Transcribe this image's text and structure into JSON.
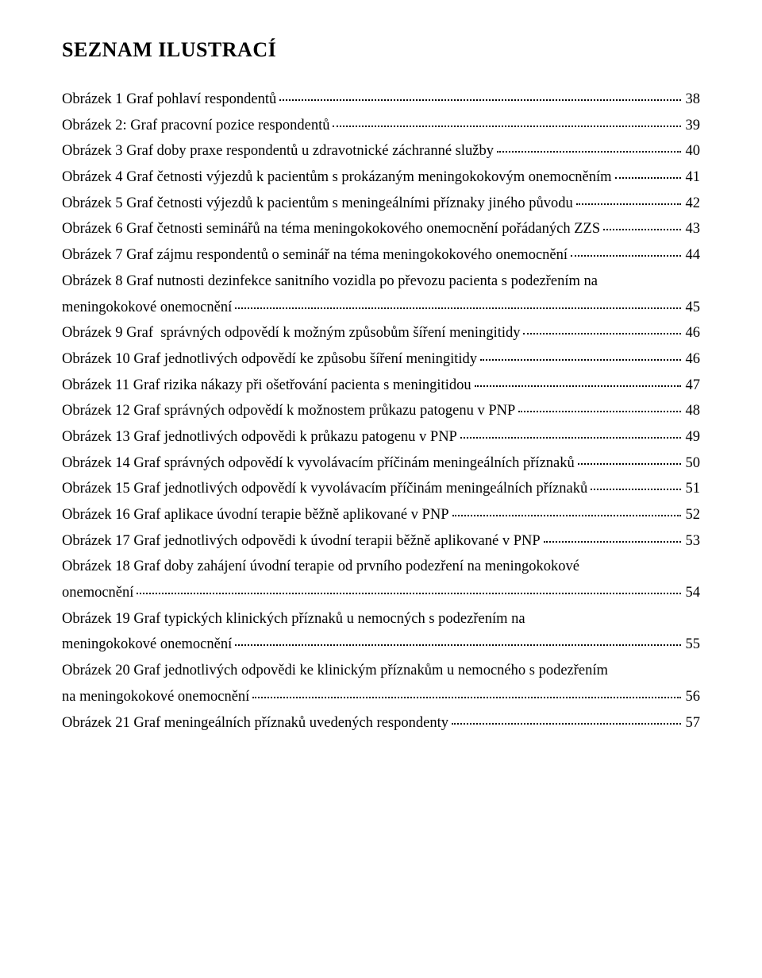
{
  "heading": "SEZNAM ILUSTRACÍ",
  "entries": [
    {
      "lines": [
        "Obrázek 1 Graf pohlaví respondentů"
      ],
      "page": "38"
    },
    {
      "lines": [
        "Obrázek 2: Graf pracovní pozice respondentů"
      ],
      "page": "39"
    },
    {
      "lines": [
        "Obrázek 3 Graf doby praxe respondentů u zdravotnické záchranné služby"
      ],
      "page": "40"
    },
    {
      "lines": [
        "Obrázek 4 Graf četnosti výjezdů k pacientům s prokázaným meningokokovým onemocněním"
      ],
      "page": "41"
    },
    {
      "lines": [
        "Obrázek 5 Graf četnosti výjezdů k pacientům s meningeálními příznaky jiného původu"
      ],
      "page": "42"
    },
    {
      "lines": [
        "Obrázek 6 Graf četnosti seminářů na téma meningokokového onemocnění pořádaných ZZS"
      ],
      "page": "43"
    },
    {
      "lines": [
        "Obrázek 7 Graf zájmu respondentů o seminář na téma meningokokového onemocnění"
      ],
      "page": "44"
    },
    {
      "lines": [
        "Obrázek 8 Graf nutnosti dezinfekce sanitního vozidla po převozu pacienta s podezřením na",
        "meningokokové onemocnění"
      ],
      "page": "45"
    },
    {
      "lines": [
        "Obrázek 9 Graf  správných odpovědí k možným způsobům šíření meningitidy"
      ],
      "page": "46"
    },
    {
      "lines": [
        "Obrázek 10 Graf jednotlivých odpovědí ke způsobu šíření meningitidy"
      ],
      "page": "46"
    },
    {
      "lines": [
        "Obrázek 11 Graf rizika nákazy při ošetřování pacienta s meningitidou"
      ],
      "page": "47"
    },
    {
      "lines": [
        "Obrázek 12 Graf správných odpovědí k možnostem průkazu patogenu v PNP"
      ],
      "page": "48"
    },
    {
      "lines": [
        "Obrázek 13 Graf jednotlivých odpovědi k průkazu patogenu v PNP"
      ],
      "page": "49"
    },
    {
      "lines": [
        "Obrázek 14 Graf správných odpovědí k vyvolávacím příčinám meningeálních příznaků"
      ],
      "page": "50"
    },
    {
      "lines": [
        "Obrázek 15 Graf jednotlivých odpovědí k vyvolávacím příčinám meningeálních příznaků"
      ],
      "page": "51"
    },
    {
      "lines": [
        "Obrázek 16 Graf aplikace úvodní terapie běžně aplikované v PNP"
      ],
      "page": "52"
    },
    {
      "lines": [
        "Obrázek 17 Graf jednotlivých odpovědi k úvodní terapii běžně aplikované v PNP"
      ],
      "page": "53"
    },
    {
      "lines": [
        "Obrázek 18 Graf doby zahájení úvodní terapie od prvního podezření na meningokokové",
        "onemocnění"
      ],
      "page": "54"
    },
    {
      "lines": [
        "Obrázek 19 Graf typických klinických příznaků u nemocných s podezřením na",
        "meningokokové onemocnění"
      ],
      "page": "55"
    },
    {
      "lines": [
        "Obrázek 20 Graf jednotlivých odpovědi ke klinickým příznakům u nemocného s podezřením",
        "na meningokokové onemocnění"
      ],
      "page": "56"
    },
    {
      "lines": [
        "Obrázek 21 Graf meningeálních příznaků uvedených respondenty"
      ],
      "page": "57"
    }
  ]
}
